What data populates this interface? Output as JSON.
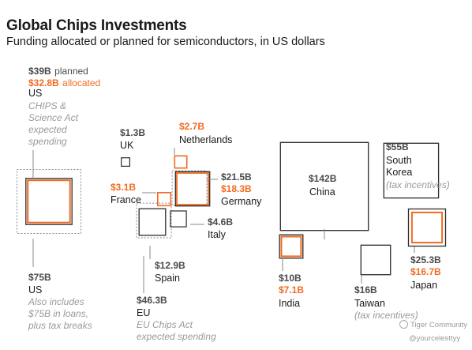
{
  "title": "Global Chips Investments",
  "subtitle": "Funding allocated or planned for semiconductors, in US dollars",
  "labels": {
    "us_top_planned": "$39B",
    "us_top_planned_word": "planned",
    "us_top_allocated": "$32.8B",
    "us_top_allocated_word": "allocated",
    "us_top_name": "US",
    "us_top_note_1": "CHIPS &",
    "us_top_note_2": "Science Act",
    "us_top_note_3": "expected",
    "us_top_note_4": "spending",
    "us_bottom_value": "$75B",
    "us_bottom_name": "US",
    "us_bottom_note_1": "Also includes",
    "us_bottom_note_2": "$75B in loans,",
    "us_bottom_note_3": "plus tax breaks",
    "uk_value": "$1.3B",
    "uk_name": "UK",
    "nl_value": "$2.7B",
    "nl_name": "Netherlands",
    "fr_value": "$3.1B",
    "fr_name": "France",
    "de_value": "$21.5B",
    "de_allocated": "$18.3B",
    "de_name": "Germany",
    "it_value": "$4.6B",
    "it_name": "Italy",
    "es_value": "$12.9B",
    "es_name": "Spain",
    "eu_value": "$46.3B",
    "eu_name": "EU",
    "eu_note_1": "EU Chips Act",
    "eu_note_2": "expected spending",
    "cn_value": "$142B",
    "cn_name": "China",
    "kr_value": "$55B",
    "kr_name_1": "South",
    "kr_name_2": "Korea",
    "kr_note": "(tax incentives)",
    "jp_value": "$25.3B",
    "jp_allocated": "$16.7B",
    "jp_name": "Japan",
    "in_value": "$10B",
    "in_allocated": "$7.1B",
    "in_name": "India",
    "tw_value": "$16B",
    "tw_name": "Taiwan",
    "tw_note": "(tax incentives)",
    "watermark_1": "Tiger Community",
    "watermark_2": "@yourcelesttyy"
  },
  "colors": {
    "outline": "#2b2b2b",
    "allocated": "#f26b21",
    "dotted": "#8a8a8a",
    "connector": "#8a8a8a"
  },
  "chart_data": {
    "type": "proportional-area squares",
    "title": "Global Chips Investments",
    "subtitle": "Funding allocated or planned for semiconductors, in US dollars",
    "unit": "US$ billions",
    "items": [
      {
        "name": "US",
        "planned": 39,
        "allocated": 32.8
      },
      {
        "name": "US",
        "total": 75
      },
      {
        "name": "UK",
        "planned": 1.3
      },
      {
        "name": "Netherlands",
        "allocated": 2.7
      },
      {
        "name": "France",
        "allocated": 3.1
      },
      {
        "name": "Germany",
        "planned": 21.5,
        "allocated": 18.3
      },
      {
        "name": "Italy",
        "planned": 4.6
      },
      {
        "name": "Spain",
        "planned": 12.9
      },
      {
        "name": "EU",
        "total": 46.3
      },
      {
        "name": "China",
        "planned": 142
      },
      {
        "name": "South Korea",
        "planned": 55
      },
      {
        "name": "Japan",
        "planned": 25.3,
        "allocated": 16.7
      },
      {
        "name": "India",
        "planned": 10,
        "allocated": 7.1
      },
      {
        "name": "Taiwan",
        "planned": 16
      }
    ]
  }
}
